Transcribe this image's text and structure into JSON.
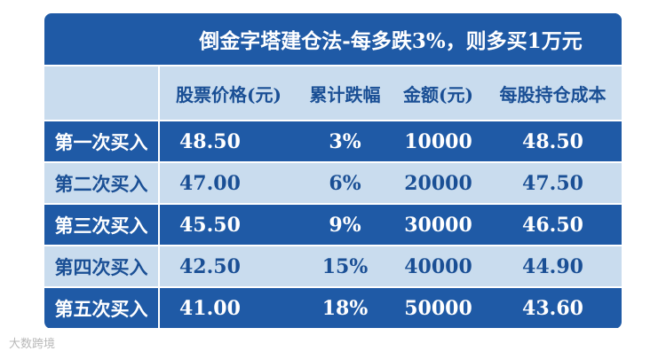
{
  "table": {
    "title": "倒金字塔建仓法-每多跌3%，则多买1万元",
    "header": [
      "股票价格(元)",
      "累计跌幅",
      "金额(元)",
      "每股持仓成本"
    ],
    "rows": [
      [
        "第一次买入",
        "48.50",
        "3%",
        "10000",
        "48.50"
      ],
      [
        "第二次买入",
        "47.00",
        "6%",
        "20000",
        "47.50"
      ],
      [
        "第三次买入",
        "45.50",
        "9%",
        "30000",
        "46.50"
      ],
      [
        "第四次买入",
        "42.50",
        "15%",
        "40000",
        "44.90"
      ],
      [
        "第五次买入",
        "41.00",
        "18%",
        "50000",
        "43.60"
      ]
    ]
  },
  "watermark": "大数跨境"
}
